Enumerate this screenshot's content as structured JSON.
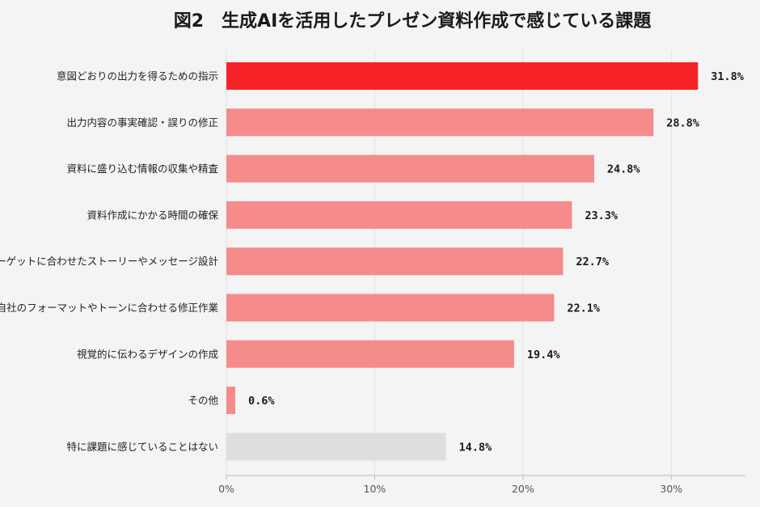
{
  "chart_data": {
    "type": "bar",
    "orientation": "horizontal",
    "title": "図2　生成AIを活用したプレゼン資料作成で感じている課題",
    "categories": [
      "意図どおりの出力を得るための指示",
      "出力内容の事実確認・誤りの修正",
      "資料に盛り込む情報の収集や精査",
      "資料作成にかかる時間の確保",
      "ターゲットに合わせたストーリーやメッセージ設計",
      "自社のフォーマットやトーンに合わせる修正作業",
      "視覚的に伝わるデザインの作成",
      "その他",
      "特に課題に感じていることはない"
    ],
    "values": [
      31.8,
      28.8,
      24.8,
      23.3,
      22.7,
      22.1,
      19.4,
      0.6,
      14.8
    ],
    "value_labels": [
      "31.8%",
      "28.8%",
      "24.8%",
      "23.3%",
      "22.7%",
      "22.1%",
      "19.4%",
      "0.6%",
      "14.8%"
    ],
    "xlim": [
      0,
      35
    ],
    "xticks": [
      0,
      10,
      20,
      30
    ],
    "xtick_labels": [
      "0%",
      "10%",
      "20%",
      "30%"
    ],
    "grid": true,
    "colors": {
      "highlight": "#f52328",
      "default": "#f58b8b",
      "none": "#dedede",
      "background": "#f4f4f4"
    },
    "bar_color_keys": [
      "highlight",
      "default",
      "default",
      "default",
      "default",
      "default",
      "default",
      "default",
      "none"
    ]
  }
}
